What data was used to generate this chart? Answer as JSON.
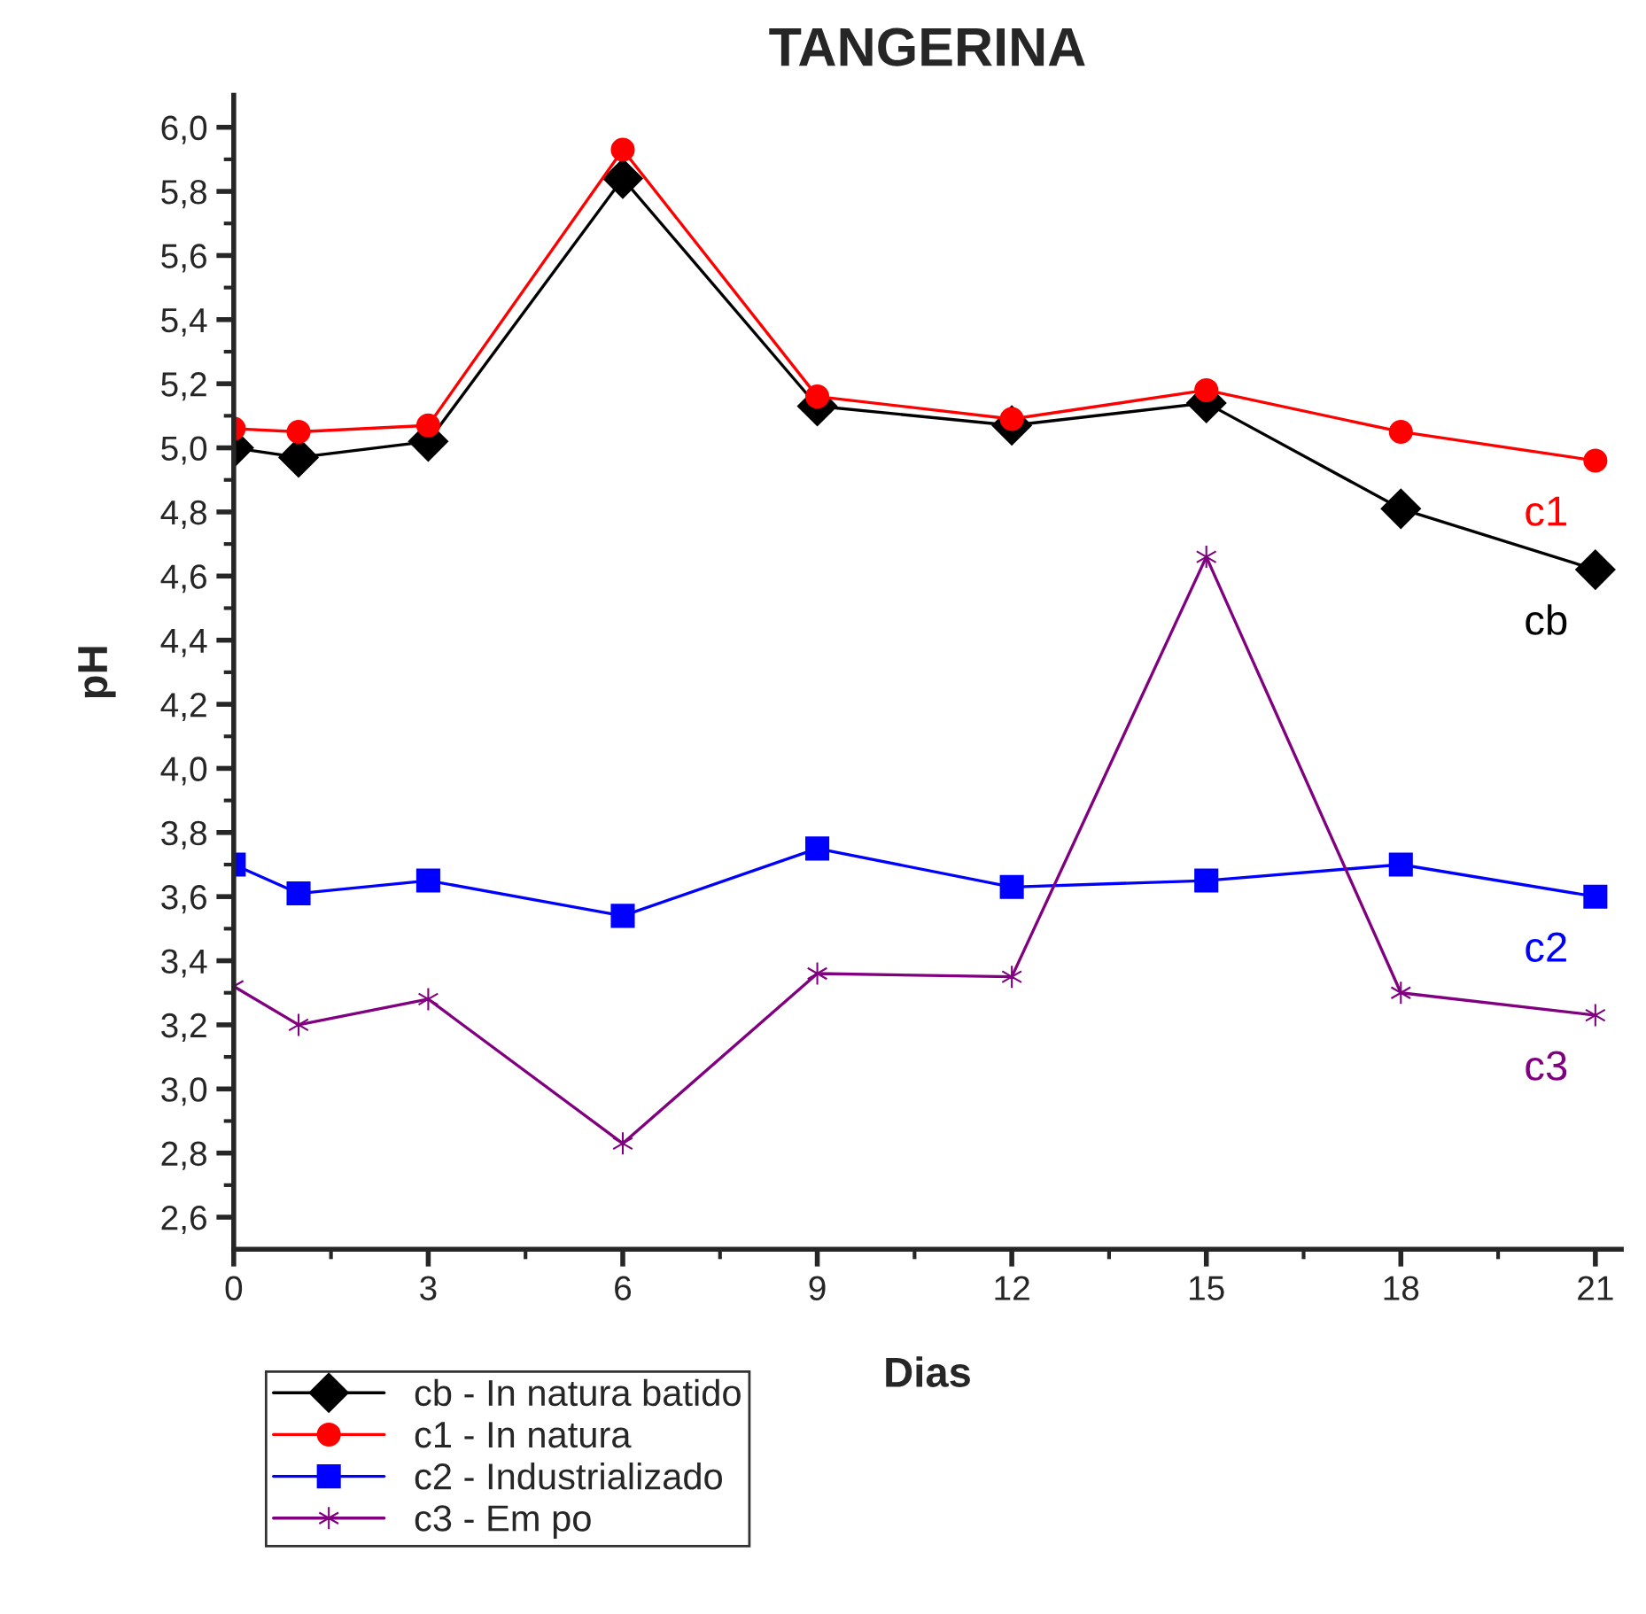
{
  "chart_data": {
    "type": "line",
    "title": "TANGERINA",
    "xlabel": "Dias",
    "ylabel": "pH",
    "x": [
      0,
      1,
      3,
      6,
      9,
      12,
      15,
      18,
      21
    ],
    "series": [
      {
        "name": "cb - In natura batido",
        "color": "#000000",
        "marker": "diamond",
        "values": [
          5.0,
          4.97,
          5.02,
          5.84,
          5.13,
          5.07,
          5.14,
          4.81,
          4.62
        ]
      },
      {
        "name": "c1 - In natura",
        "color": "#ff0000",
        "marker": "circle",
        "values": [
          5.06,
          5.05,
          5.07,
          5.93,
          5.16,
          5.09,
          5.18,
          5.05,
          4.96
        ]
      },
      {
        "name": "c2 - Industrializado",
        "color": "#0000ff",
        "marker": "square",
        "values": [
          3.7,
          3.61,
          3.65,
          3.54,
          3.75,
          3.63,
          3.65,
          3.7,
          3.6
        ]
      },
      {
        "name": "c3 - Em po",
        "color": "#800080",
        "marker": "cross",
        "values": [
          3.32,
          3.2,
          3.28,
          2.83,
          3.36,
          3.35,
          4.66,
          3.3,
          3.23
        ]
      }
    ],
    "annotations": [
      "cb",
      "c1",
      "c2",
      "c3"
    ],
    "xlim": [
      0,
      21.4
    ],
    "ylim": [
      2.5,
      6.1
    ],
    "xticks": [
      0,
      3,
      6,
      9,
      12,
      15,
      18,
      21
    ],
    "yticks": [
      {
        "value": 2.6,
        "label": "2,6"
      },
      {
        "value": 2.8,
        "label": "2,8"
      },
      {
        "value": 3.0,
        "label": "3,0"
      },
      {
        "value": 3.2,
        "label": "3,2"
      },
      {
        "value": 3.4,
        "label": "3,4"
      },
      {
        "value": 3.6,
        "label": "3,6"
      },
      {
        "value": 3.8,
        "label": "3,8"
      },
      {
        "value": 4.0,
        "label": "4,0"
      },
      {
        "value": 4.2,
        "label": "4,2"
      },
      {
        "value": 4.4,
        "label": "4,4"
      },
      {
        "value": 4.6,
        "label": "4,6"
      },
      {
        "value": 4.8,
        "label": "4,8"
      },
      {
        "value": 5.0,
        "label": "5,0"
      },
      {
        "value": 5.2,
        "label": "5,2"
      },
      {
        "value": 5.4,
        "label": "5,4"
      },
      {
        "value": 5.6,
        "label": "5,6"
      },
      {
        "value": 5.8,
        "label": "5,8"
      },
      {
        "value": 6.0,
        "label": "6,0"
      }
    ],
    "grid": false,
    "legend": "bottom left",
    "line_style": "solid"
  }
}
